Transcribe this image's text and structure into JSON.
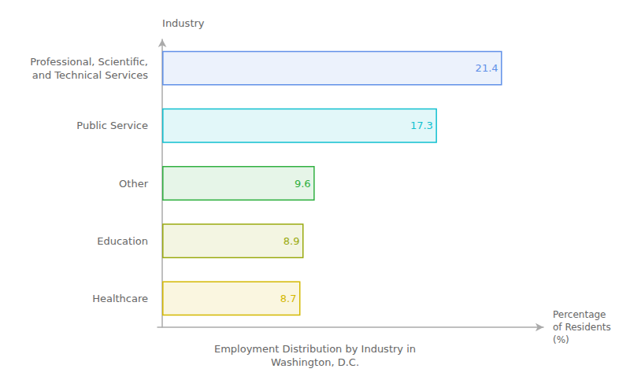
{
  "chart_data": {
    "type": "bar",
    "orientation": "horizontal",
    "title": "Employment Distribution by Industry in\nWashington, D.C.",
    "xlabel": "Percentage\nof Residents\n(%)",
    "ylabel": "Industry",
    "categories": [
      "Healthcare",
      "Education",
      "Other",
      "Public Service",
      "Professional, Scientific,\nand Technical Services"
    ],
    "values": [
      8.7,
      8.9,
      9.6,
      17.3,
      21.4
    ],
    "colors": [
      "#d4b800",
      "#9aaa10",
      "#30b040",
      "#10c0d0",
      "#6090e8"
    ],
    "xlim": [
      -0.3,
      24
    ],
    "xticks": [],
    "tick_labels": "y",
    "data_labels": true,
    "grid": false
  }
}
